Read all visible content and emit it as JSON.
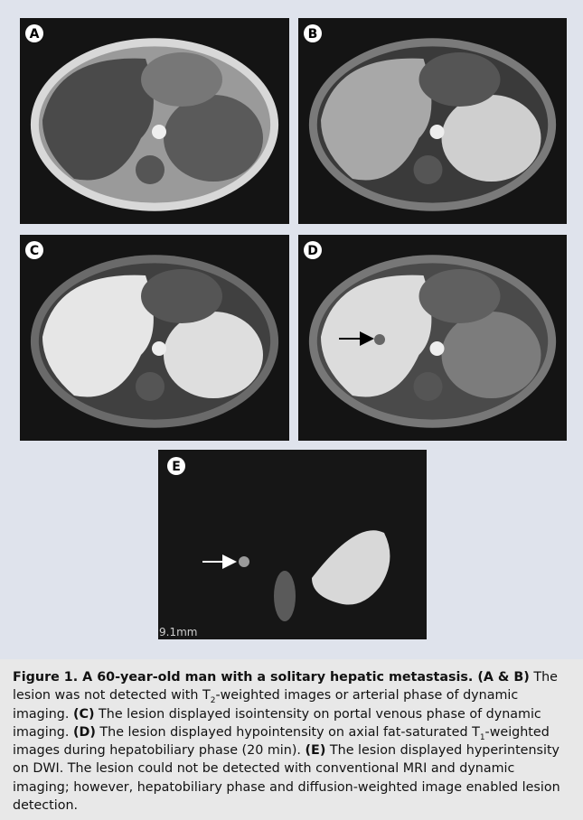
{
  "panels": [
    {
      "label": "A"
    },
    {
      "label": "B"
    },
    {
      "label": "C"
    },
    {
      "label": "D"
    },
    {
      "label": "E",
      "scale_text": "9.1mm"
    }
  ],
  "caption": {
    "runs": [
      "Figure 1. A 60-year-old man with a solitary hepatic metastasis. (A & B)",
      "The lesion was not detected with T",
      "2",
      "-weighted images or arterial phase of dynamic imaging.",
      "(C)",
      "The lesion displayed isointensity on portal venous phase of dynamic imaging.",
      "(D)",
      "The lesion displayed hypointensity on axial fat-saturated T",
      "1",
      "-weighted images during hepatobiliary phase (20 min).",
      "(E)",
      "The lesion displayed hyperintensity on DWI. The lesion could not be detected with conventional MRI and dynamic imaging; however, hepatobiliary phase and diffusion-weighted image enabled lesion detection."
    ]
  }
}
